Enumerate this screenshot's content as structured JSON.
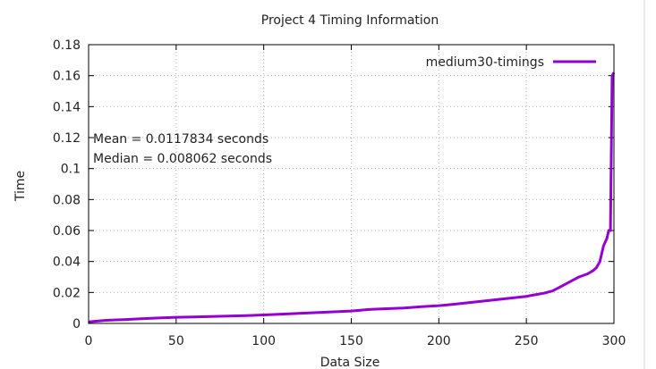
{
  "chart_data": {
    "type": "line",
    "title": "Project 4 Timing Information",
    "xlabel": "Data Size",
    "ylabel": "Time",
    "xlim": [
      0,
      300
    ],
    "ylim": [
      0,
      0.18
    ],
    "x_ticks": [
      "0",
      "50",
      "100",
      "150",
      "200",
      "250",
      "300"
    ],
    "y_ticks": [
      "0",
      "0.02",
      "0.04",
      "0.06",
      "0.08",
      "0.1",
      "0.12",
      "0.14",
      "0.16",
      "0.18"
    ],
    "grid": true,
    "legend_position": "top-right",
    "annotations": [
      "Mean = 0.0117834 seconds",
      "Median = 0.008062 seconds"
    ],
    "series": [
      {
        "name": "medium30-timings",
        "color": "#9400d3",
        "x": [
          0,
          10,
          20,
          30,
          40,
          50,
          60,
          70,
          80,
          90,
          100,
          110,
          120,
          130,
          140,
          150,
          160,
          170,
          180,
          190,
          200,
          210,
          220,
          230,
          240,
          250,
          255,
          260,
          265,
          270,
          275,
          280,
          285,
          288,
          290,
          292,
          294,
          296,
          297,
          298,
          299,
          300
        ],
        "y": [
          0.001,
          0.002,
          0.0025,
          0.003,
          0.0035,
          0.004,
          0.0042,
          0.0045,
          0.0048,
          0.005,
          0.0055,
          0.006,
          0.0065,
          0.007,
          0.0075,
          0.008,
          0.009,
          0.0095,
          0.01,
          0.0108,
          0.0115,
          0.0125,
          0.0138,
          0.015,
          0.0162,
          0.0175,
          0.0185,
          0.0195,
          0.021,
          0.024,
          0.027,
          0.03,
          0.032,
          0.034,
          0.036,
          0.04,
          0.05,
          0.055,
          0.06,
          0.06,
          0.16,
          0.162
        ]
      }
    ]
  }
}
